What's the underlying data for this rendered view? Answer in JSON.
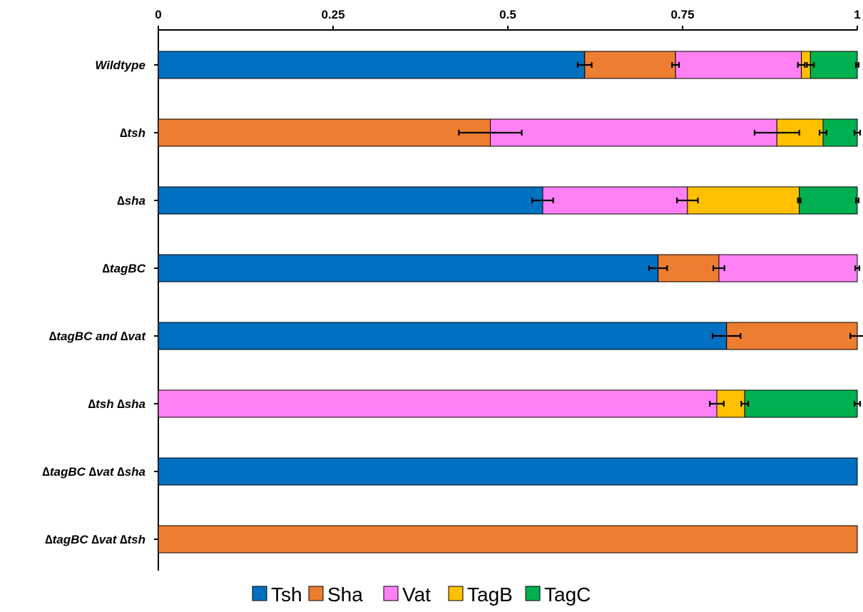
{
  "chart_data": {
    "type": "bar",
    "orientation": "horizontal",
    "stacked": true,
    "title": "",
    "xlabel": "",
    "ylabel": "",
    "xlim": [
      0,
      1
    ],
    "x_ticks": [
      "0",
      "0.25",
      "0.5",
      "0.75",
      "1"
    ],
    "x_tick_values": [
      0,
      0.25,
      0.5,
      0.75,
      1
    ],
    "x_axis_position": "top",
    "grid": false,
    "legend_position": "bottom",
    "categories": [
      "Wildtype",
      "∆tsh",
      "∆sha",
      "∆tagBC",
      "∆tagBC and ∆vat",
      "∆tsh ∆sha",
      "∆tagBC  ∆vat ∆sha",
      "∆tagBC  ∆vat ∆tsh"
    ],
    "series": [
      {
        "name": "Tsh",
        "color": "#0070C0",
        "values": [
          0.61,
          0,
          0.55,
          0.715,
          0.813,
          0,
          1,
          0
        ],
        "errors": [
          0.01,
          0,
          0.015,
          0.013,
          0.02,
          0,
          0,
          0
        ]
      },
      {
        "name": "Sha",
        "color": "#ED7D31",
        "values": [
          0.13,
          0.475,
          0,
          0.087,
          0.187,
          0,
          0,
          1
        ],
        "errors": [
          0.005,
          0.045,
          0,
          0.008,
          0.01,
          0,
          0,
          0
        ]
      },
      {
        "name": "Vat",
        "color": "#FF80F4",
        "values": [
          0.18,
          0.41,
          0.207,
          0.198,
          0,
          0.799,
          0,
          0
        ],
        "errors": [
          0.005,
          0.032,
          0.015,
          0.003,
          0,
          0.01,
          0,
          0
        ]
      },
      {
        "name": "TagB",
        "color": "#FFC000",
        "values": [
          0.013,
          0.066,
          0.16,
          0,
          0,
          0.04,
          0,
          0
        ],
        "errors": [
          0.005,
          0.005,
          0.002,
          0,
          0,
          0.005,
          0,
          0
        ]
      },
      {
        "name": "TagC",
        "color": "#00B050",
        "values": [
          0.067,
          0.049,
          0.083,
          0,
          0,
          0.161,
          0,
          0
        ],
        "errors": [
          0.002,
          0.004,
          0.002,
          0,
          0,
          0.004,
          0,
          0
        ]
      }
    ]
  }
}
